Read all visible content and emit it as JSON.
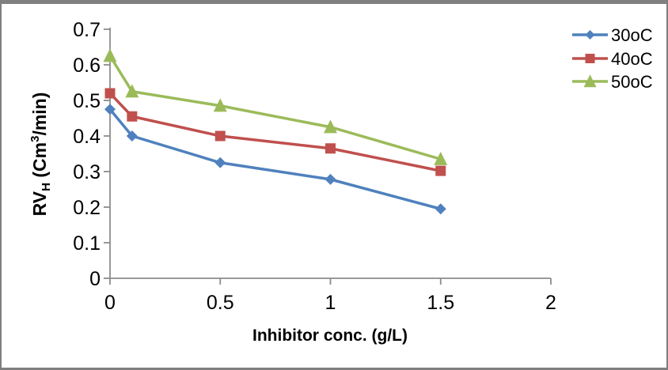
{
  "chart_data": {
    "type": "line",
    "title": "",
    "xlabel": "Inhibitor conc. (g/L)",
    "ylabel_plain": "RVH (Cm3/min)",
    "ylabel_parts": [
      {
        "text": "RV",
        "style": "normal"
      },
      {
        "text": "H",
        "style": "sub"
      },
      {
        "text": " (Cm",
        "style": "normal"
      },
      {
        "text": "3",
        "style": "sup"
      },
      {
        "text": "/min)",
        "style": "normal"
      }
    ],
    "x": [
      0,
      0.1,
      0.5,
      1,
      1.5
    ],
    "series": [
      {
        "name": "30oC",
        "color": "#4F81BD",
        "marker": "diamond",
        "values": [
          0.475,
          0.4,
          0.325,
          0.278,
          0.195
        ]
      },
      {
        "name": "40oC",
        "color": "#C0504D",
        "marker": "square",
        "values": [
          0.52,
          0.455,
          0.4,
          0.365,
          0.302
        ]
      },
      {
        "name": "50oC",
        "color": "#9BBB59",
        "marker": "triangle",
        "values": [
          0.625,
          0.525,
          0.485,
          0.425,
          0.335
        ]
      }
    ],
    "xlim": [
      0,
      2
    ],
    "ylim": [
      0,
      0.7
    ],
    "x_tick_values": [
      0,
      0.5,
      1,
      1.5,
      2
    ],
    "x_tick_labels": [
      "0",
      "0.5",
      "1",
      "1.5",
      "2"
    ],
    "y_tick_values": [
      0,
      0.1,
      0.2,
      0.3,
      0.4,
      0.5,
      0.6,
      0.7
    ],
    "y_tick_labels": [
      "0",
      "0.1",
      "0.2",
      "0.3",
      "0.4",
      "0.5",
      "0.6",
      "0.7"
    ],
    "legend_position": "right",
    "grid": false,
    "axis_color": "#8C8C8C",
    "text_color": "#000000",
    "background": "#FFFFFF",
    "frame_border_color": "#7F7F7F"
  }
}
